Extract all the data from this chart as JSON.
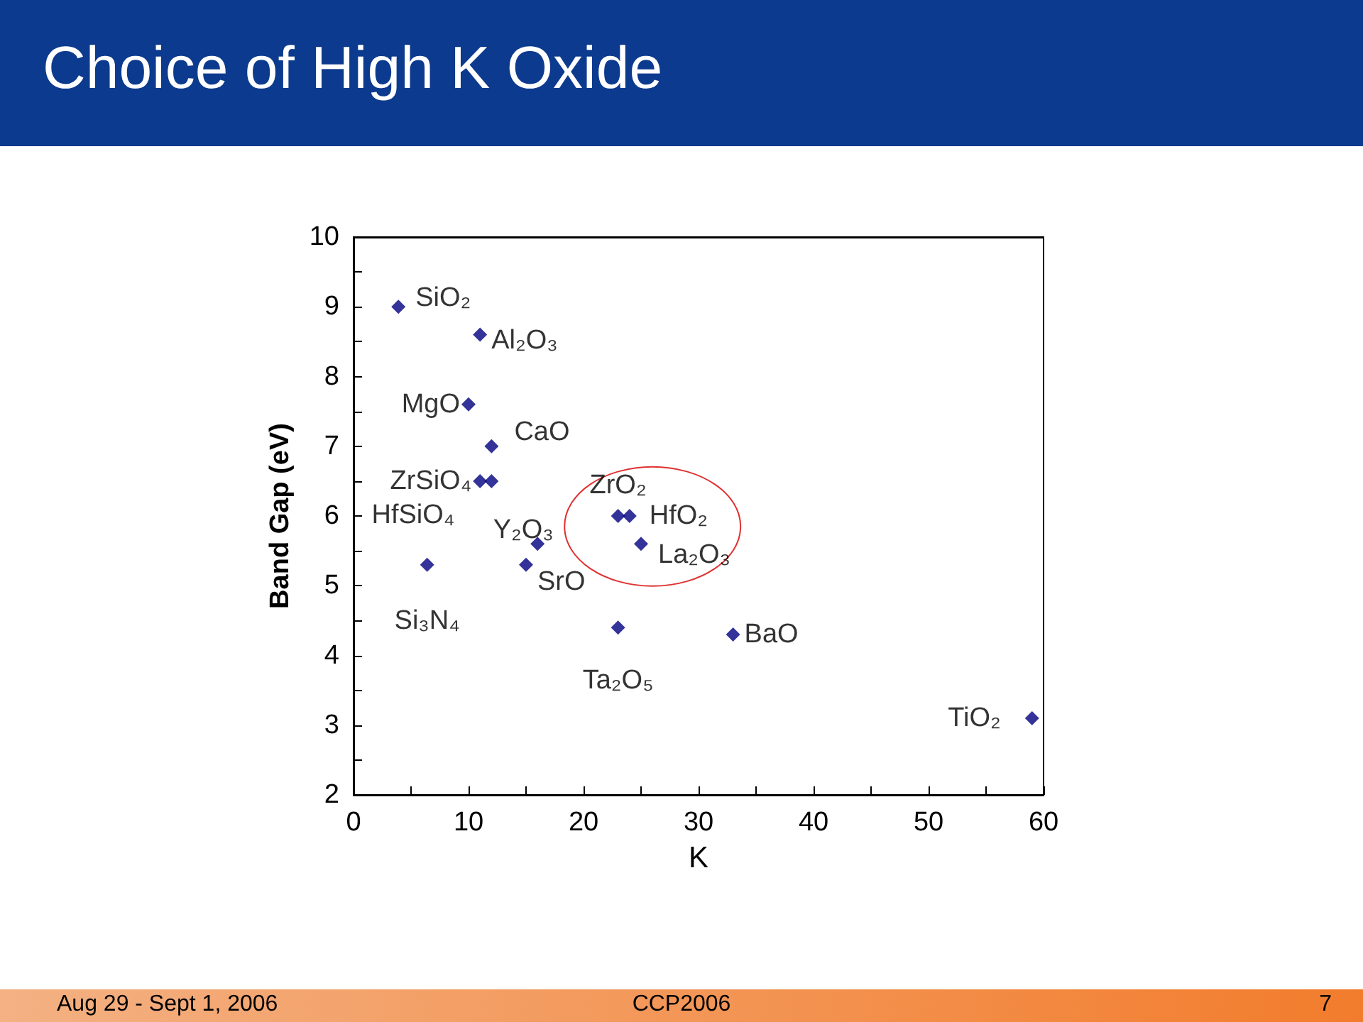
{
  "chart_data": {
    "type": "scatter",
    "title": "Choice of High K Oxide",
    "xlabel": "K",
    "ylabel": "Band Gap (eV)",
    "x": [
      3.9,
      11,
      10,
      12,
      11,
      12,
      6.4,
      15,
      16,
      23,
      24,
      25,
      23,
      33,
      59
    ],
    "series": [
      {
        "color": "#000080",
        "values": [
          9.0,
          8.6,
          7.6,
          7.0,
          6.5,
          6.5,
          5.3,
          5.3,
          5.6,
          6.0,
          6.0,
          5.6,
          4.4,
          4.3,
          3.1
        ]
      }
    ],
    "marker": "diamond",
    "grid": false,
    "xlim": [
      0,
      60
    ],
    "xticks": [
      0,
      {
        "value": 5,
        "label": null
      },
      10,
      {
        "value": 15,
        "label": null
      },
      20,
      {
        "value": 25,
        "label": null
      },
      30,
      {
        "value": 35,
        "label": null
      },
      40,
      {
        "value": 45,
        "label": null
      },
      50,
      {
        "value": 55,
        "label": null
      },
      60
    ],
    "ylim": [
      2,
      10
    ],
    "yticks": [
      2,
      {
        "value": 2.5,
        "label": null
      },
      3,
      {
        "value": 3.5,
        "label": null
      },
      4,
      {
        "value": 4.5,
        "label": null
      },
      5,
      {
        "value": 5.5,
        "label": null
      },
      6,
      {
        "value": 6.5,
        "label": null
      },
      7,
      {
        "value": 7.5,
        "label": null
      },
      8,
      {
        "value": 8.5,
        "label": null
      },
      9,
      {
        "value": 9.5,
        "label": null
      },
      10
    ],
    "annotations": [
      {
        "text": "SiO₂",
        "x": 3.9,
        "y": 9.0
      },
      {
        "text": "Al₂O₃",
        "x": 11,
        "y": 8.6
      },
      {
        "text": "MgO",
        "x": 10,
        "y": 7.6
      },
      {
        "text": "CaO",
        "x": 12,
        "y": 7.0
      },
      {
        "text": "ZrSiO₄",
        "x": 11,
        "y": 6.5
      },
      {
        "text": "HfSiO₄",
        "x": 12,
        "y": 6.5
      },
      {
        "text": "Si₃N₄",
        "x": 6.4,
        "y": 5.3
      },
      {
        "text": "SrO",
        "x": 15,
        "y": 5.3
      },
      {
        "text": "Y₂O₃",
        "x": 16,
        "y": 5.6
      },
      {
        "text": "ZrO₂",
        "x": 23,
        "y": 6.0
      },
      {
        "text": "HfO₂",
        "x": 24,
        "y": 6.0
      },
      {
        "text": "La₂O₃",
        "x": 25,
        "y": 5.6
      },
      {
        "text": "Ta₂O₅",
        "x": 23,
        "y": 4.4
      },
      {
        "text": "BaO",
        "x": 33,
        "y": 4.3
      },
      {
        "text": "TiO₂",
        "x": 59,
        "y": 3.1
      },
      "Aug 29 - Sept 1, 2006",
      "CCP2006",
      "7"
    ]
  }
}
